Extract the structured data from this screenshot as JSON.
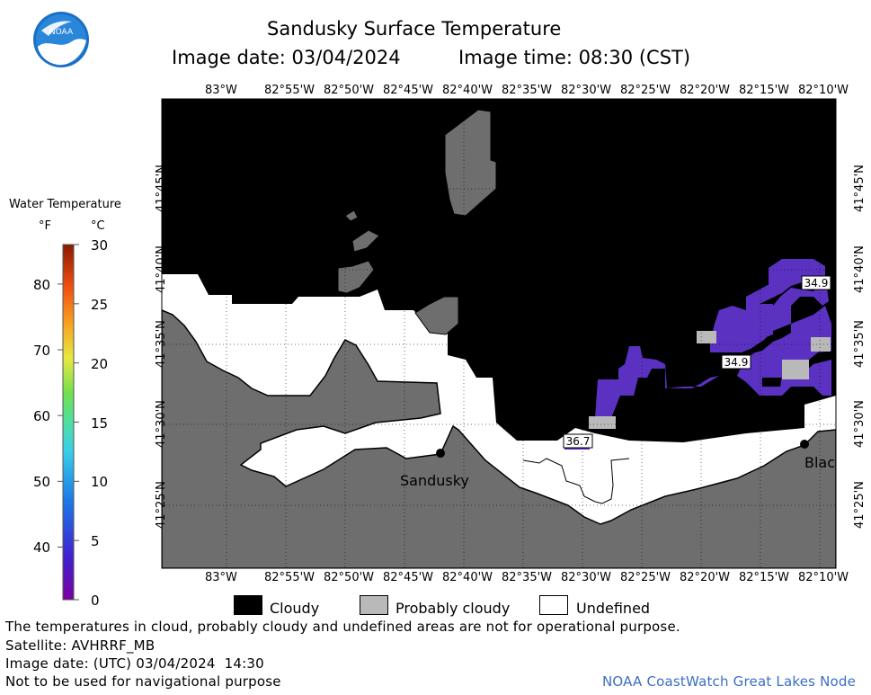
{
  "header": {
    "title": "Sandusky Surface Temperature",
    "image_date_label": "Image date: 03/04/2024",
    "image_time_label": "Image time: 08:30 (CST)"
  },
  "logo": {
    "text": "NOAA"
  },
  "colorbar": {
    "title": "Water Temperature",
    "unit_f": "°F",
    "unit_c": "°C",
    "f_ticks": [
      "80",
      "70",
      "60",
      "50",
      "40"
    ],
    "c_ticks": [
      "30",
      "25",
      "20",
      "15",
      "10",
      "5",
      "0"
    ]
  },
  "map": {
    "lon_labels": [
      "83°W",
      "82°55'W",
      "82°50'W",
      "82°45'W",
      "82°40'W",
      "82°35'W",
      "82°30'W",
      "82°25'W",
      "82°20'W",
      "82°15'W",
      "82°10'W"
    ],
    "lat_labels": [
      "41°45'N",
      "41°40'N",
      "41°35'N",
      "41°30'N",
      "41°25'N"
    ],
    "city_sandusky": "Sandusky",
    "city_blac": "Blac",
    "temps": [
      "34.9",
      "34.9",
      "36.7"
    ],
    "colors": {
      "land": "#6e6e6e",
      "cloud": "#000000",
      "probably_cloudy": "#b9b9b9",
      "undefined": "#ffffff",
      "cold_water": "#5b31c2"
    }
  },
  "legend": {
    "cloudy": "Cloudy",
    "probably_cloudy": "Probably cloudy",
    "undefined": "Undefined"
  },
  "footer": {
    "disclaimer": "The temperatures in cloud, probably cloudy and undefined areas are not for operational purpose.",
    "satellite": "Satellite: AVHRRF_MB",
    "image_date_utc": "Image date: (UTC) 03/04/2024  14:30",
    "nav_warning": "Not to be used for navigational purpose",
    "credit": "NOAA CoastWatch Great Lakes Node"
  }
}
